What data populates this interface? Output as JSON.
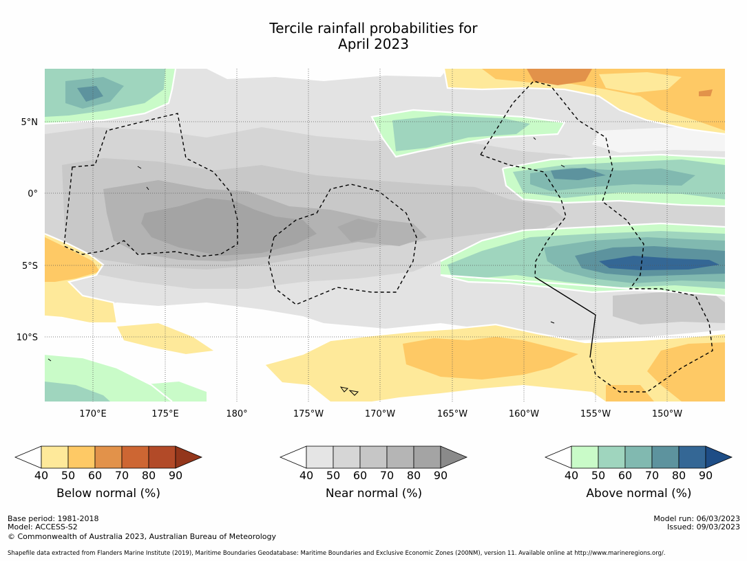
{
  "title_line1": "Tercile rainfall probabilities for",
  "title_line2": "April 2023",
  "lat_labels": [
    "5°N",
    "0°",
    "5°S",
    "10°S"
  ],
  "lon_labels": [
    "170°E",
    "175°E",
    "180°",
    "175°W",
    "170°W",
    "165°W",
    "160°W",
    "155°W",
    "150°W"
  ],
  "colorbars": [
    {
      "name": "below",
      "label": "Below normal (%)",
      "ticks": [
        "40",
        "50",
        "60",
        "70",
        "80",
        "90"
      ],
      "colors": [
        "#fee99a",
        "#fec965",
        "#e2924a",
        "#cd6633",
        "#b24a28",
        "#93361b"
      ]
    },
    {
      "name": "near",
      "label": "Near normal (%)",
      "ticks": [
        "40",
        "50",
        "60",
        "70",
        "80",
        "90"
      ],
      "colors": [
        "#e5e5e5",
        "#d6d6d6",
        "#c6c6c6",
        "#b5b5b5",
        "#a4a4a4",
        "#8a8a8a"
      ]
    },
    {
      "name": "above",
      "label": "Above normal (%)",
      "ticks": [
        "40",
        "50",
        "60",
        "70",
        "80",
        "90"
      ],
      "colors": [
        "#c9fbc8",
        "#9fd5be",
        "#81b9b0",
        "#5d939e",
        "#346795",
        "#1e4d86"
      ]
    }
  ],
  "footer": {
    "base_period": "Base period: 1981-2018",
    "model": "Model: ACCESS-S2",
    "copyright": "© Commonwealth of Australia 2023, Australian Bureau of Meteorology",
    "model_run": "Model run: 06/03/2023",
    "issued": "Issued: 09/03/2023",
    "shapefile": "Shapefile data extracted from Flanders Marine Institute (2019), Maritime Boundaries Geodatabase: Maritime Boundaries and Exclusive Economic Zones (200NM), version 11. Available online at http://www.marineregions.org/."
  }
}
